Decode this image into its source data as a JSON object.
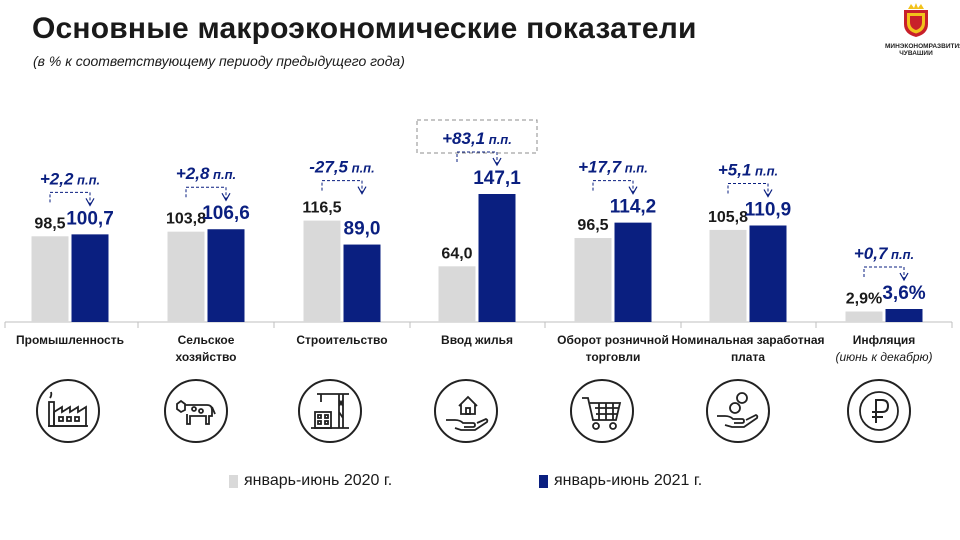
{
  "header": {
    "title": "Основные макроэкономические показатели",
    "subtitle": "(в % к соответствующему периоду предыдущего года)"
  },
  "logo": {
    "line1": "МИНЭКОНОМРАЗВИТИЯ",
    "line2": "ЧУВАШИИ"
  },
  "colors": {
    "series_2020": "#d9d9d9",
    "series_2021": "#0a1f80",
    "icon": "#1a1a1a",
    "annotation": "#0a1f80"
  },
  "icons": [
    "factory-icon",
    "cow-icon",
    "construction-crane-icon",
    "house-on-hand-icon",
    "shopping-cart-icon",
    "money-hand-icon",
    "ruble-circle-icon"
  ],
  "chart_data": {
    "type": "bar",
    "categories": [
      "Промышленность",
      "Сельское хозяйство",
      "Строительство",
      "Ввод жилья",
      "Оборот розничной торговли",
      "Номинальная заработная плата",
      "Инфляция"
    ],
    "category_notes": [
      "",
      "",
      "",
      "",
      "",
      "",
      "(июнь к декабрю)"
    ],
    "series": [
      {
        "name": "январь-июнь 2020 г.",
        "values": [
          98.5,
          103.8,
          116.5,
          64.0,
          96.5,
          105.8,
          2.9
        ],
        "labels": [
          "98,5",
          "103,8",
          "116,5",
          "64,0",
          "96,5",
          "105,8",
          "2,9%"
        ]
      },
      {
        "name": "январь-июнь 2021 г.",
        "values": [
          100.7,
          106.6,
          89.0,
          147.1,
          114.2,
          110.9,
          3.6
        ],
        "labels": [
          "100,7",
          "106,6",
          "89,0",
          "147,1",
          "114,2",
          "110,9",
          "3,6%"
        ]
      }
    ],
    "changes": [
      {
        "value": "+2,2",
        "unit": " п.п."
      },
      {
        "value": "+2,8",
        "unit": " п.п."
      },
      {
        "value": "-27,5",
        "unit": " п.п."
      },
      {
        "value": "+83,1",
        "unit": " п.п."
      },
      {
        "value": "+17,7",
        "unit": " п.п."
      },
      {
        "value": "+5,1",
        "unit": " п.п."
      },
      {
        "value": "+0,7",
        "unit": " п.п."
      }
    ],
    "legend_position": "bottom",
    "grid": false
  }
}
